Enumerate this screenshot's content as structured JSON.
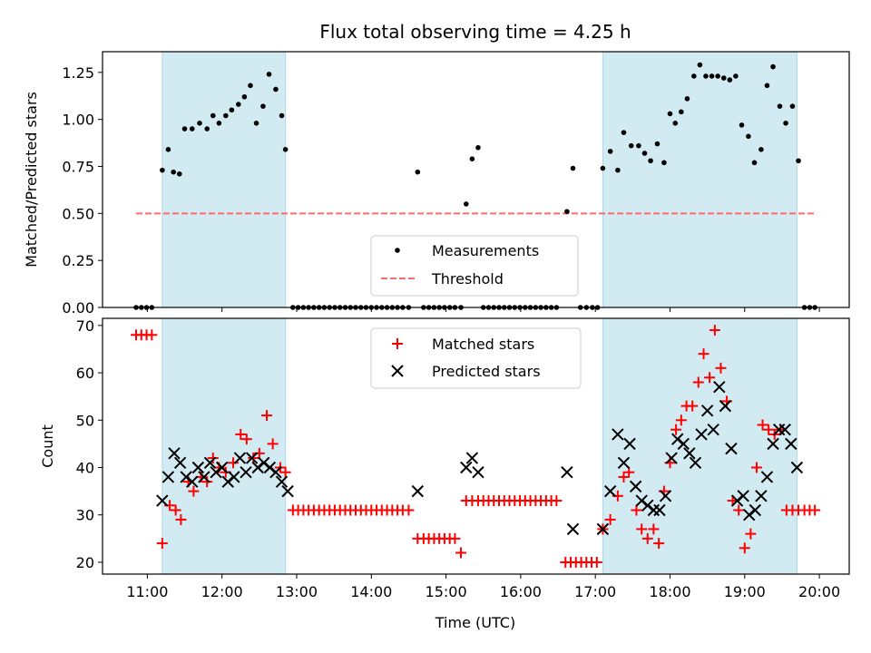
{
  "title": "Flux total observing time = 4.25 h",
  "colors": {
    "shade": "#add8e6",
    "measurement": "#000000",
    "threshold": "#ff6b6b",
    "matched": "#ff0000",
    "predicted": "#000000"
  },
  "chart_data": [
    {
      "type": "scatter",
      "ylabel": "Matched/Predicted stars",
      "xlim": [
        10.4,
        20.4
      ],
      "ylim": [
        0,
        1.36
      ],
      "yticks": [
        0,
        0.25,
        0.5,
        0.75,
        1.0,
        1.25
      ],
      "ytick_labels": [
        "0.00",
        "0.25",
        "0.50",
        "0.75",
        "1.00",
        "1.25"
      ],
      "shaded_regions": [
        [
          11.2,
          12.85
        ],
        [
          17.1,
          19.7
        ]
      ],
      "threshold": {
        "name": "Threshold",
        "y": 0.5,
        "x_range": [
          10.85,
          19.95
        ]
      },
      "legend": {
        "position": "bottom-center",
        "entries": [
          "Measurements",
          "Threshold"
        ]
      },
      "series": [
        {
          "name": "Measurements",
          "x": [
            10.85,
            10.92,
            10.99,
            11.06,
            11.2,
            11.28,
            11.35,
            11.43,
            11.5,
            11.6,
            11.7,
            11.8,
            11.88,
            11.96,
            12.05,
            12.13,
            12.22,
            12.3,
            12.38,
            12.46,
            12.55,
            12.63,
            12.72,
            12.8,
            12.85,
            12.95,
            13.02,
            13.09,
            13.16,
            13.23,
            13.3,
            13.37,
            13.44,
            13.51,
            13.58,
            13.65,
            13.72,
            13.79,
            13.86,
            13.93,
            14.0,
            14.07,
            14.14,
            14.21,
            14.28,
            14.35,
            14.42,
            14.5,
            14.62,
            14.7,
            14.77,
            14.84,
            14.91,
            14.98,
            15.05,
            15.12,
            15.2,
            15.27,
            15.35,
            15.43,
            15.5,
            15.57,
            15.64,
            15.71,
            15.78,
            15.85,
            15.92,
            15.99,
            16.06,
            16.13,
            16.2,
            16.27,
            16.34,
            16.41,
            16.48,
            16.62,
            16.7,
            16.8,
            16.88,
            16.96,
            17.03,
            17.1,
            17.2,
            17.3,
            17.38,
            17.48,
            17.58,
            17.66,
            17.74,
            17.83,
            17.92,
            18.0,
            18.07,
            18.15,
            18.23,
            18.32,
            18.4,
            18.48,
            18.56,
            18.64,
            18.72,
            18.8,
            18.88,
            18.96,
            19.05,
            19.13,
            19.22,
            19.3,
            19.38,
            19.47,
            19.55,
            19.64,
            19.72,
            19.8,
            19.87,
            19.94
          ],
          "y": [
            0,
            0,
            0,
            0,
            0.73,
            0.84,
            0.72,
            0.71,
            0.95,
            0.95,
            0.98,
            0.95,
            1.02,
            0.98,
            1.02,
            1.05,
            1.08,
            1.12,
            1.18,
            0.98,
            1.07,
            1.24,
            1.16,
            1.02,
            0.84,
            0,
            0,
            0,
            0,
            0,
            0,
            0,
            0,
            0,
            0,
            0,
            0,
            0,
            0,
            0,
            0,
            0,
            0,
            0,
            0,
            0,
            0,
            0,
            0.72,
            0,
            0,
            0,
            0,
            0,
            0,
            0,
            0,
            0.55,
            0.79,
            0.85,
            0,
            0,
            0,
            0,
            0,
            0,
            0,
            0,
            0,
            0,
            0,
            0,
            0,
            0,
            0,
            0.51,
            0.74,
            0,
            0,
            0,
            0,
            0.74,
            0.83,
            0.73,
            0.93,
            0.86,
            0.86,
            0.82,
            0.78,
            0.87,
            0.77,
            1.03,
            0.98,
            1.04,
            1.11,
            1.23,
            1.29,
            1.23,
            1.23,
            1.23,
            1.22,
            1.21,
            1.23,
            0.97,
            0.91,
            0.77,
            0.84,
            1.18,
            1.28,
            1.07,
            0.98,
            1.07,
            0.78,
            0,
            0,
            0
          ]
        }
      ]
    },
    {
      "type": "scatter",
      "xlabel": "Time (UTC)",
      "ylabel": "Count",
      "xlim": [
        10.4,
        20.4
      ],
      "ylim": [
        17.5,
        71.5
      ],
      "xticks": [
        11,
        12,
        13,
        14,
        15,
        16,
        17,
        18,
        19,
        20
      ],
      "xtick_labels": [
        "11:00",
        "12:00",
        "13:00",
        "14:00",
        "15:00",
        "16:00",
        "17:00",
        "18:00",
        "19:00",
        "20:00"
      ],
      "yticks": [
        20,
        30,
        40,
        50,
        60,
        70
      ],
      "ytick_labels": [
        "20",
        "30",
        "40",
        "50",
        "60",
        "70"
      ],
      "shaded_regions": [
        [
          11.2,
          12.85
        ],
        [
          17.1,
          19.7
        ]
      ],
      "legend": {
        "position": "top-center",
        "entries": [
          "Matched stars",
          "Predicted stars"
        ]
      },
      "series": [
        {
          "name": "Matched stars",
          "marker": "plus",
          "x": [
            10.85,
            10.92,
            10.99,
            11.06,
            11.2,
            11.3,
            11.38,
            11.45,
            11.55,
            11.62,
            11.72,
            11.8,
            11.88,
            11.96,
            12.05,
            12.15,
            12.25,
            12.33,
            12.42,
            12.5,
            12.6,
            12.68,
            12.78,
            12.85,
            12.95,
            13.02,
            13.09,
            13.16,
            13.23,
            13.3,
            13.37,
            13.44,
            13.51,
            13.58,
            13.65,
            13.72,
            13.79,
            13.86,
            13.93,
            14.0,
            14.07,
            14.14,
            14.21,
            14.28,
            14.35,
            14.42,
            14.5,
            14.62,
            14.7,
            14.77,
            14.84,
            14.91,
            14.98,
            15.05,
            15.12,
            15.2,
            15.27,
            15.35,
            15.43,
            15.5,
            15.57,
            15.64,
            15.71,
            15.78,
            15.85,
            15.92,
            15.99,
            16.06,
            16.13,
            16.2,
            16.27,
            16.34,
            16.41,
            16.48,
            16.6,
            16.67,
            16.74,
            16.81,
            16.88,
            16.95,
            17.02,
            17.1,
            17.2,
            17.3,
            17.38,
            17.45,
            17.55,
            17.62,
            17.7,
            17.78,
            17.85,
            17.92,
            18.0,
            18.08,
            18.15,
            18.22,
            18.3,
            18.38,
            18.45,
            18.53,
            18.6,
            18.68,
            18.76,
            18.84,
            18.92,
            19.0,
            19.08,
            19.16,
            19.24,
            19.32,
            19.4,
            19.48,
            19.56,
            19.64,
            19.72,
            19.8,
            19.87,
            19.94
          ],
          "y": [
            68,
            68,
            68,
            68,
            24,
            32,
            31,
            29,
            37,
            35,
            38,
            37,
            42,
            40,
            39,
            41,
            47,
            46,
            42,
            43,
            51,
            45,
            40,
            39,
            31,
            31,
            31,
            31,
            31,
            31,
            31,
            31,
            31,
            31,
            31,
            31,
            31,
            31,
            31,
            31,
            31,
            31,
            31,
            31,
            31,
            31,
            31,
            25,
            25,
            25,
            25,
            25,
            25,
            25,
            25,
            22,
            33,
            33,
            33,
            33,
            33,
            33,
            33,
            33,
            33,
            33,
            33,
            33,
            33,
            33,
            33,
            33,
            33,
            33,
            20,
            20,
            20,
            20,
            20,
            20,
            20,
            27,
            29,
            34,
            38,
            39,
            31,
            27,
            25,
            27,
            24,
            35,
            41,
            48,
            50,
            53,
            53,
            58,
            64,
            59,
            69,
            61,
            54,
            33,
            31,
            23,
            26,
            40,
            49,
            48,
            47,
            48,
            31,
            31,
            31,
            31,
            31,
            31
          ]
        },
        {
          "name": "Predicted stars",
          "marker": "x",
          "x": [
            11.2,
            11.28,
            11.36,
            11.44,
            11.52,
            11.6,
            11.68,
            11.76,
            11.84,
            11.92,
            12.0,
            12.08,
            12.16,
            12.24,
            12.32,
            12.4,
            12.48,
            12.56,
            12.64,
            12.72,
            12.8,
            12.88,
            14.62,
            15.27,
            15.35,
            15.43,
            16.62,
            16.7,
            17.1,
            17.2,
            17.3,
            17.38,
            17.46,
            17.54,
            17.62,
            17.7,
            17.78,
            17.86,
            17.94,
            18.02,
            18.1,
            18.18,
            18.26,
            18.34,
            18.42,
            18.5,
            18.58,
            18.66,
            18.74,
            18.82,
            18.9,
            18.98,
            19.06,
            19.14,
            19.22,
            19.3,
            19.38,
            19.46,
            19.54,
            19.62,
            19.7
          ],
          "y": [
            33,
            38,
            43,
            41,
            38,
            37,
            40,
            38,
            41,
            39,
            40,
            37,
            38,
            42,
            39,
            42,
            40,
            41,
            40,
            39,
            37,
            35,
            35,
            40,
            42,
            39,
            39,
            27,
            27,
            35,
            47,
            41,
            45,
            36,
            33,
            32,
            31,
            31,
            34,
            42,
            46,
            45,
            43,
            41,
            47,
            52,
            48,
            57,
            53,
            44,
            33,
            34,
            30,
            31,
            34,
            38,
            45,
            48,
            48,
            45,
            40
          ]
        }
      ]
    }
  ]
}
